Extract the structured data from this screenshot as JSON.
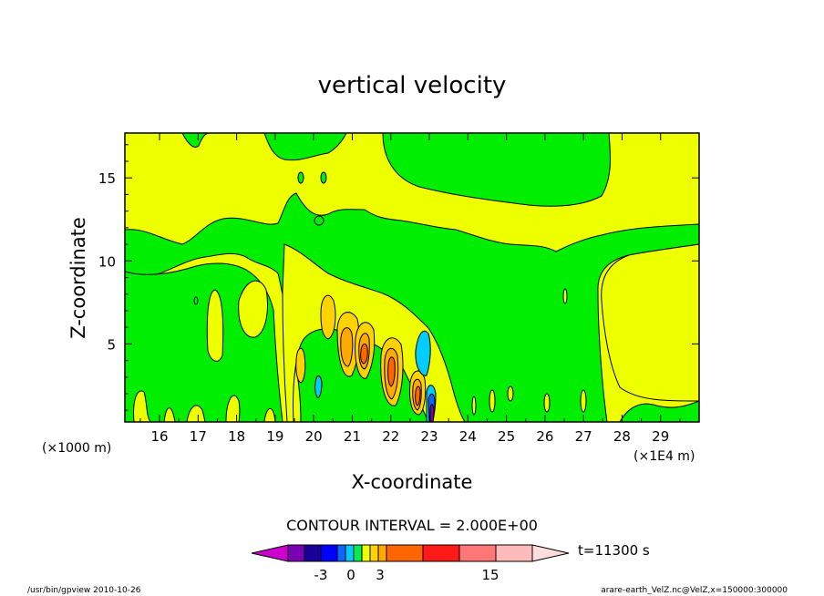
{
  "chart_data": {
    "type": "heatmap",
    "title": "vertical velocity",
    "xlabel": "X-coordinate",
    "ylabel": "Z-coordinate",
    "x_unit_left": "(×1000 m)",
    "x_unit_right": "(×1E4 m)",
    "xlim": [
      15.1,
      30.0
    ],
    "ylim": [
      0.3,
      17.7
    ],
    "x_ticks": [
      "16",
      "17",
      "18",
      "19",
      "20",
      "21",
      "22",
      "23",
      "24",
      "25",
      "26",
      "27",
      "28",
      "29"
    ],
    "y_ticks": [
      "5",
      "10",
      "15"
    ],
    "contour_interval": "CONTOUR INTERVAL = 2.000E+00",
    "time_label": "t=11300 s",
    "colorbar": {
      "colors": [
        "#cc00cc",
        "#7a00b4",
        "#1a0096",
        "#0000ff",
        "#0a66ff",
        "#00ccff",
        "#00ee55",
        "#eeff00",
        "#ffd200",
        "#ffaa00",
        "#ff6600",
        "#ff1a1a",
        "#ff7777",
        "#ffbbbb",
        "#ffdddd"
      ],
      "tick_labels": [
        "-3",
        "0",
        "3",
        "15"
      ]
    },
    "features": {
      "background": "#eeff00",
      "green": "#00ee00",
      "orange": "#ffd200",
      "dark_orange": "#ffaa00",
      "red_orange": "#ff6600",
      "cyan": "#00ccff",
      "blue": "#0a66ff",
      "purple": "#7a00b4"
    }
  },
  "footer": {
    "left": "/usr/bin/gpview   2010-10-26",
    "right": "arare-earth_VelZ.nc@VelZ,x=150000:300000"
  }
}
